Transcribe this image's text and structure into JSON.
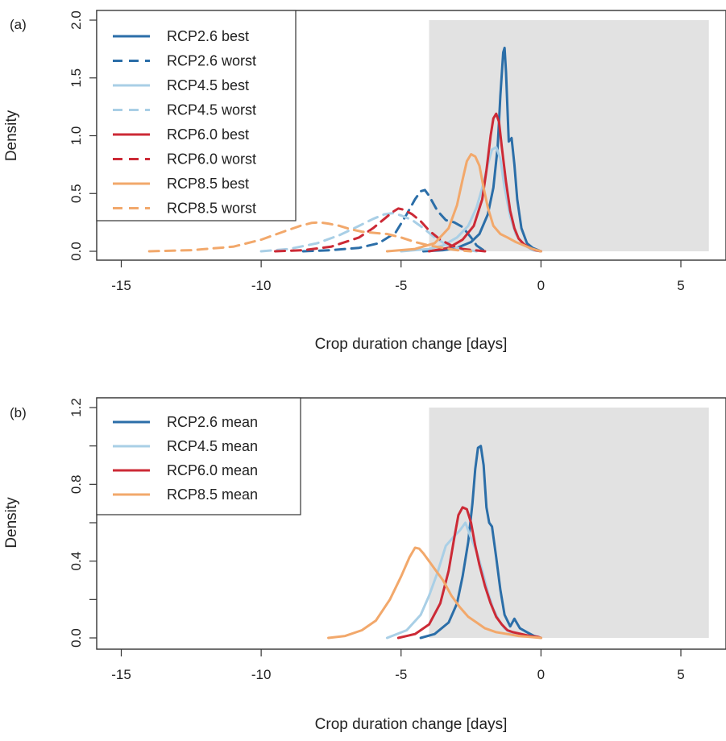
{
  "colors": {
    "rcp26": "#2b6ea8",
    "rcp45": "#a9cfe6",
    "rcp60": "#cc2a36",
    "rcp85": "#f2a86b",
    "shade": "#e2e2e2",
    "axis": "#333333"
  },
  "chart_data": [
    {
      "type": "line",
      "panel_tag": "(a)",
      "xlabel": "Crop duration change [days]",
      "ylabel": "Density",
      "xlim": [
        -16,
        6.5
      ],
      "ylim": [
        0,
        2.0
      ],
      "xticks": [
        -15,
        -10,
        -5,
        0,
        5
      ],
      "yticks": [
        0.0,
        0.5,
        1.0,
        1.5,
        2.0
      ],
      "ytick_labels": [
        "0.0",
        "0.5",
        "1.0",
        "1.5",
        "2.0"
      ],
      "xtick_labels": [
        "-15",
        "-10",
        "-5",
        "0",
        "5"
      ],
      "shaded_region": {
        "x": [
          -4,
          6
        ],
        "y": [
          0,
          2.0
        ]
      },
      "grid": false,
      "legend_position": "top-left",
      "series": [
        {
          "name": "RCP2.6 best",
          "color_key": "rcp26",
          "dash": "solid",
          "x": [
            -4.2,
            -3.5,
            -3.0,
            -2.5,
            -2.2,
            -1.9,
            -1.7,
            -1.55,
            -1.45,
            -1.35,
            -1.3,
            -1.25,
            -1.15,
            -1.05,
            -0.95,
            -0.85,
            -0.7,
            -0.5,
            -0.3,
            -0.1,
            0.0
          ],
          "y": [
            0.0,
            0.01,
            0.03,
            0.08,
            0.15,
            0.32,
            0.55,
            0.9,
            1.35,
            1.72,
            1.76,
            1.55,
            0.95,
            0.98,
            0.75,
            0.45,
            0.2,
            0.07,
            0.03,
            0.01,
            0.0
          ]
        },
        {
          "name": "RCP2.6 worst",
          "color_key": "rcp26",
          "dash": "dashed",
          "x": [
            -8.5,
            -7.5,
            -6.5,
            -5.8,
            -5.2,
            -4.8,
            -4.5,
            -4.3,
            -4.15,
            -4.0,
            -3.7,
            -3.4,
            -3.1,
            -2.8,
            -2.5,
            -2.3,
            -2.0
          ],
          "y": [
            0.0,
            0.01,
            0.03,
            0.07,
            0.16,
            0.32,
            0.45,
            0.52,
            0.53,
            0.48,
            0.35,
            0.27,
            0.25,
            0.21,
            0.12,
            0.05,
            0.0
          ]
        },
        {
          "name": "RCP4.5 best",
          "color_key": "rcp45",
          "dash": "solid",
          "x": [
            -5.0,
            -4.0,
            -3.5,
            -3.0,
            -2.6,
            -2.3,
            -2.1,
            -1.9,
            -1.75,
            -1.6,
            -1.45,
            -1.3,
            -1.1,
            -0.9,
            -0.7,
            -0.5,
            -0.3,
            0.0
          ],
          "y": [
            0.0,
            0.02,
            0.05,
            0.12,
            0.22,
            0.38,
            0.55,
            0.75,
            0.88,
            0.9,
            0.8,
            0.55,
            0.3,
            0.15,
            0.08,
            0.04,
            0.01,
            0.0
          ]
        },
        {
          "name": "RCP4.5 worst",
          "color_key": "rcp45",
          "dash": "dashed",
          "x": [
            -10.0,
            -9.0,
            -8.0,
            -7.2,
            -6.5,
            -6.0,
            -5.6,
            -5.3,
            -5.0,
            -4.6,
            -4.2,
            -3.8,
            -3.4,
            -3.0,
            -2.6,
            -2.3
          ],
          "y": [
            0.0,
            0.02,
            0.07,
            0.14,
            0.22,
            0.28,
            0.32,
            0.33,
            0.31,
            0.27,
            0.2,
            0.12,
            0.06,
            0.03,
            0.01,
            0.0
          ]
        },
        {
          "name": "RCP6.0 best",
          "color_key": "rcp60",
          "dash": "solid",
          "x": [
            -4.0,
            -3.3,
            -2.8,
            -2.4,
            -2.1,
            -1.95,
            -1.8,
            -1.7,
            -1.6,
            -1.5,
            -1.4,
            -1.25,
            -1.1,
            -0.95,
            -0.8,
            -0.6,
            -0.4,
            -0.2,
            0.0
          ],
          "y": [
            0.0,
            0.03,
            0.1,
            0.22,
            0.45,
            0.7,
            1.0,
            1.15,
            1.19,
            1.12,
            0.9,
            0.6,
            0.35,
            0.2,
            0.11,
            0.06,
            0.03,
            0.01,
            0.0
          ]
        },
        {
          "name": "RCP6.0 worst",
          "color_key": "rcp60",
          "dash": "dashed",
          "x": [
            -9.5,
            -8.5,
            -7.5,
            -6.5,
            -6.0,
            -5.6,
            -5.3,
            -5.1,
            -4.9,
            -4.6,
            -4.3,
            -4.0,
            -3.6,
            -3.2,
            -2.8,
            -2.4,
            -2.0
          ],
          "y": [
            0.0,
            0.01,
            0.04,
            0.12,
            0.2,
            0.28,
            0.34,
            0.37,
            0.36,
            0.32,
            0.26,
            0.18,
            0.1,
            0.05,
            0.02,
            0.01,
            0.0
          ]
        },
        {
          "name": "RCP8.5 best",
          "color_key": "rcp85",
          "dash": "solid",
          "x": [
            -5.5,
            -4.5,
            -3.8,
            -3.3,
            -3.0,
            -2.8,
            -2.65,
            -2.5,
            -2.35,
            -2.2,
            -2.05,
            -1.9,
            -1.7,
            -1.45,
            -1.2,
            -0.9,
            -0.6,
            -0.3,
            0.0
          ],
          "y": [
            0.0,
            0.02,
            0.07,
            0.2,
            0.4,
            0.62,
            0.78,
            0.84,
            0.82,
            0.74,
            0.55,
            0.38,
            0.22,
            0.15,
            0.12,
            0.08,
            0.05,
            0.02,
            0.0
          ]
        },
        {
          "name": "RCP8.5 worst",
          "color_key": "rcp85",
          "dash": "dashed",
          "x": [
            -14.0,
            -12.5,
            -11.0,
            -10.0,
            -9.2,
            -8.6,
            -8.2,
            -7.9,
            -7.6,
            -7.2,
            -6.8,
            -6.4,
            -6.0,
            -5.5,
            -5.0,
            -4.5,
            -4.0,
            -3.5,
            -3.0,
            -2.5
          ],
          "y": [
            0.0,
            0.01,
            0.04,
            0.1,
            0.17,
            0.22,
            0.245,
            0.25,
            0.24,
            0.22,
            0.19,
            0.17,
            0.16,
            0.15,
            0.12,
            0.08,
            0.05,
            0.03,
            0.01,
            0.0
          ]
        }
      ]
    },
    {
      "type": "line",
      "panel_tag": "(b)",
      "xlabel": "Crop duration change [days]",
      "ylabel": "Density",
      "xlim": [
        -16,
        6.5
      ],
      "ylim": [
        0,
        1.2
      ],
      "xticks": [
        -15,
        -10,
        -5,
        0,
        5
      ],
      "yticks": [
        0.0,
        0.2,
        0.4,
        0.6,
        0.8,
        1.0,
        1.2
      ],
      "ytick_labels": [
        "0.0",
        "",
        "0.4",
        "",
        "0.8",
        "",
        "1.2"
      ],
      "xtick_labels": [
        "-15",
        "-10",
        "-5",
        "0",
        "5"
      ],
      "shaded_region": {
        "x": [
          -4,
          6
        ],
        "y": [
          0,
          1.2
        ]
      },
      "grid": false,
      "legend_position": "top-left",
      "series": [
        {
          "name": "RCP2.6 mean",
          "color_key": "rcp26",
          "dash": "solid",
          "x": [
            -4.3,
            -3.8,
            -3.3,
            -3.0,
            -2.8,
            -2.6,
            -2.45,
            -2.35,
            -2.25,
            -2.15,
            -2.05,
            -1.95,
            -1.85,
            -1.75,
            -1.6,
            -1.45,
            -1.3,
            -1.1,
            -0.95,
            -0.75,
            -0.5,
            -0.25,
            0.0
          ],
          "y": [
            0.0,
            0.02,
            0.08,
            0.18,
            0.32,
            0.5,
            0.7,
            0.88,
            0.99,
            1.0,
            0.9,
            0.68,
            0.6,
            0.58,
            0.42,
            0.25,
            0.12,
            0.06,
            0.1,
            0.05,
            0.03,
            0.01,
            0.0
          ]
        },
        {
          "name": "RCP4.5 mean",
          "color_key": "rcp45",
          "dash": "solid",
          "x": [
            -5.5,
            -4.8,
            -4.3,
            -4.0,
            -3.7,
            -3.4,
            -3.1,
            -2.9,
            -2.7,
            -2.5,
            -2.3,
            -2.1,
            -1.9,
            -1.7,
            -1.5,
            -1.3,
            -1.1,
            -0.8,
            -0.5,
            -0.2,
            0.0
          ],
          "y": [
            0.0,
            0.04,
            0.12,
            0.22,
            0.34,
            0.48,
            0.53,
            0.56,
            0.6,
            0.52,
            0.45,
            0.35,
            0.24,
            0.15,
            0.09,
            0.05,
            0.03,
            0.02,
            0.01,
            0.005,
            0.0
          ]
        },
        {
          "name": "RCP6.0 mean",
          "color_key": "rcp60",
          "dash": "solid",
          "x": [
            -5.1,
            -4.5,
            -4.0,
            -3.6,
            -3.3,
            -3.1,
            -2.95,
            -2.8,
            -2.65,
            -2.5,
            -2.35,
            -2.2,
            -2.0,
            -1.8,
            -1.6,
            -1.4,
            -1.2,
            -1.0,
            -0.7,
            -0.4,
            -0.1,
            0.0
          ],
          "y": [
            0.0,
            0.02,
            0.07,
            0.18,
            0.35,
            0.52,
            0.64,
            0.68,
            0.67,
            0.6,
            0.48,
            0.38,
            0.27,
            0.18,
            0.11,
            0.07,
            0.04,
            0.03,
            0.02,
            0.01,
            0.005,
            0.0
          ]
        },
        {
          "name": "RCP8.5 mean",
          "color_key": "rcp85",
          "dash": "solid",
          "x": [
            -7.6,
            -7.0,
            -6.4,
            -5.9,
            -5.4,
            -5.0,
            -4.7,
            -4.5,
            -4.35,
            -4.2,
            -4.0,
            -3.8,
            -3.5,
            -3.2,
            -2.9,
            -2.6,
            -2.3,
            -2.0,
            -1.6,
            -1.2,
            -0.8,
            -0.4,
            0.0
          ],
          "y": [
            0.0,
            0.01,
            0.04,
            0.09,
            0.2,
            0.32,
            0.42,
            0.47,
            0.465,
            0.44,
            0.4,
            0.36,
            0.3,
            0.22,
            0.16,
            0.11,
            0.08,
            0.05,
            0.03,
            0.02,
            0.01,
            0.005,
            0.0
          ]
        }
      ]
    }
  ]
}
